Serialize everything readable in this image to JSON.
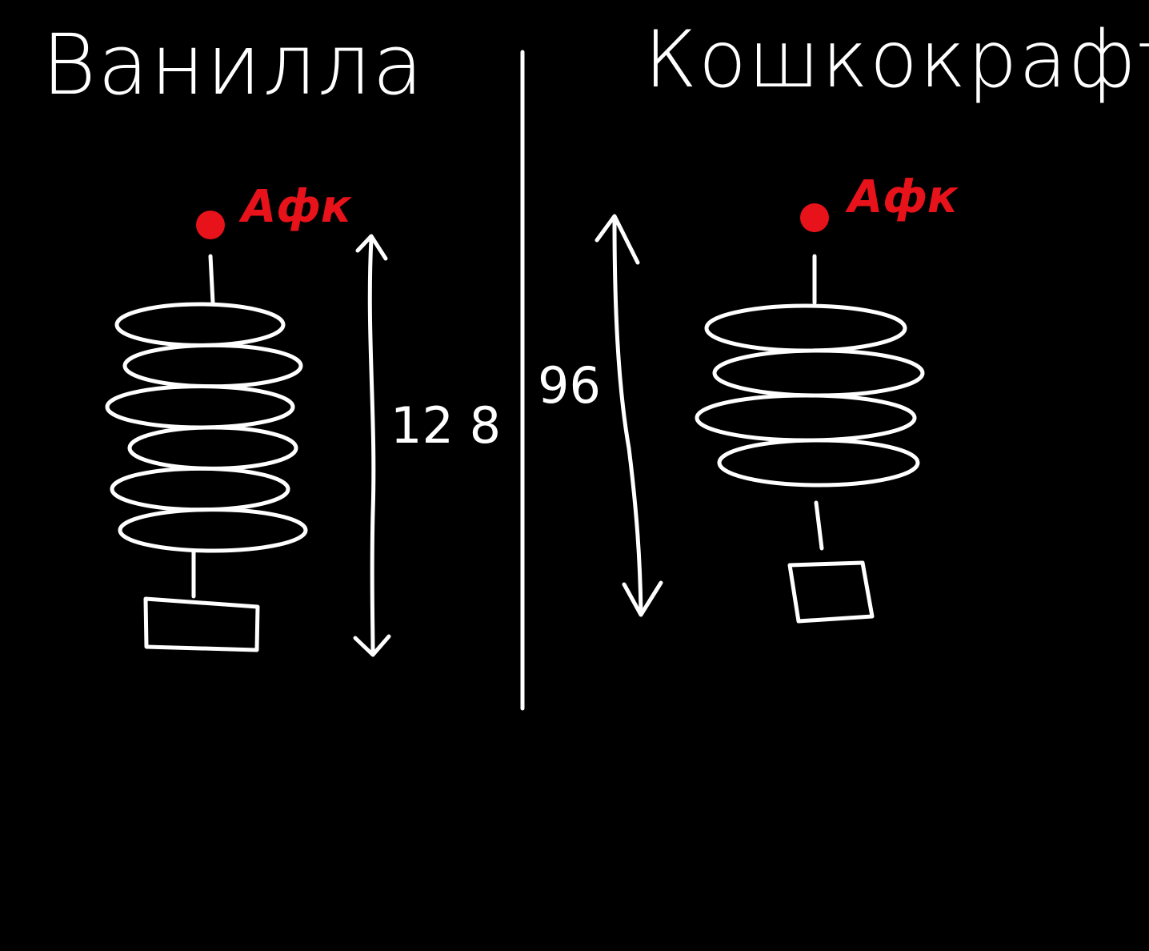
{
  "colors": {
    "background": "#000000",
    "ink": "#ffffff",
    "afk": "#e8121a"
  },
  "left": {
    "title": "Ванилла",
    "afk_label": "Афк",
    "height_label": "12 8",
    "coil_count": 6
  },
  "right": {
    "title": "Кошкокрафт",
    "afk_label": "Афк",
    "height_label": "96",
    "coil_count": 4
  }
}
